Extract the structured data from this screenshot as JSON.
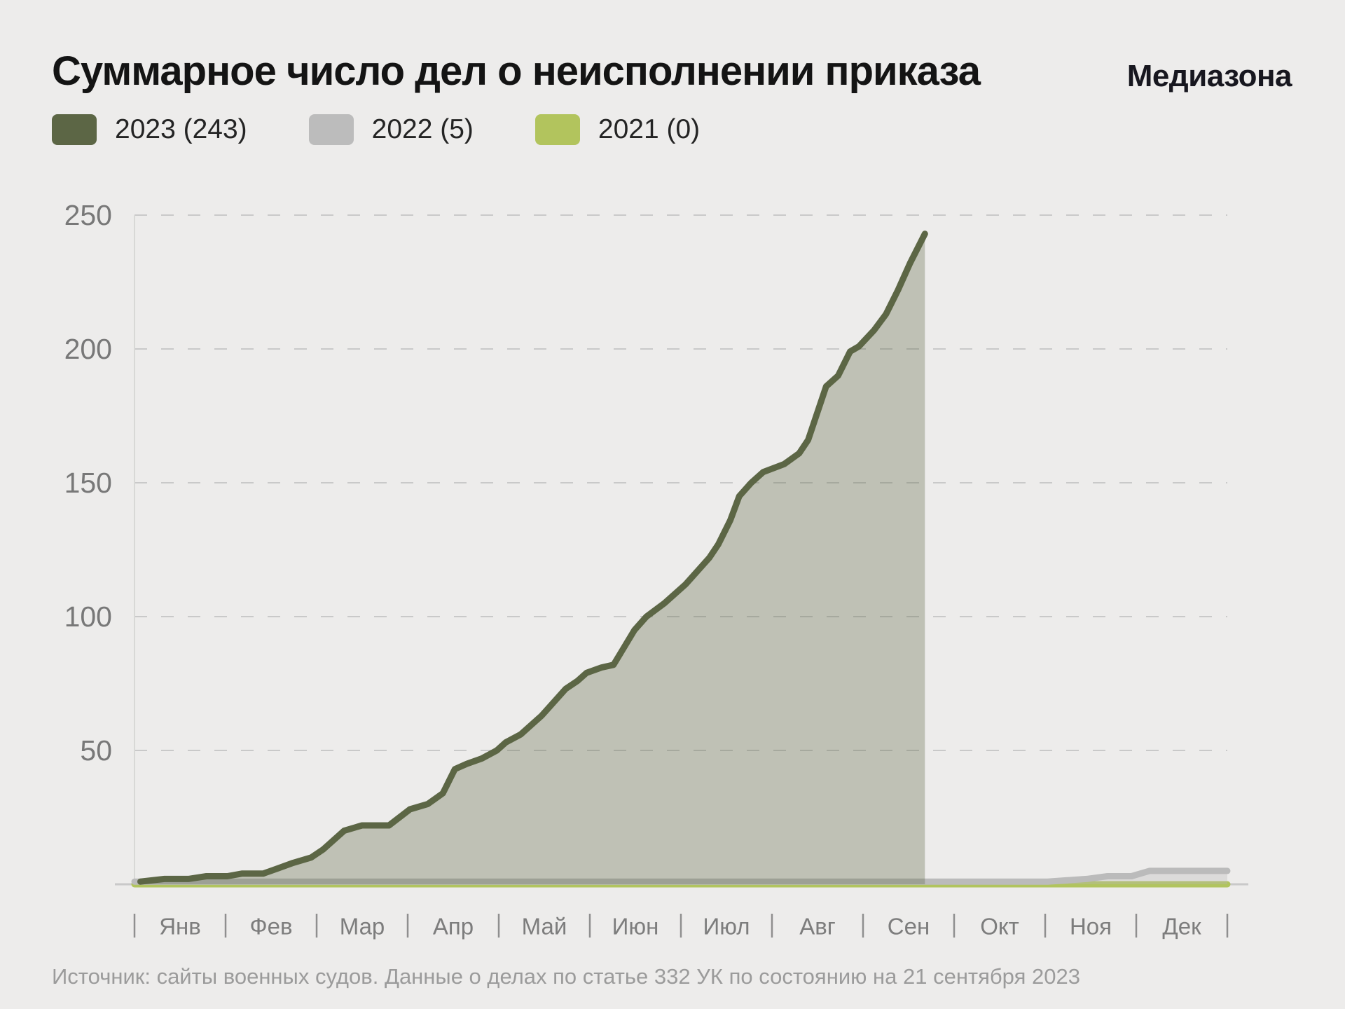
{
  "header": {
    "title": "Суммарное число дел о неисполнении приказа",
    "brand": "Медиазона"
  },
  "legend": [
    {
      "label": "2023 (243)",
      "color": "#5c6645"
    },
    {
      "label": "2022 (5)",
      "color": "#bcbcbc"
    },
    {
      "label": "2021 (0)",
      "color": "#b2c45d"
    }
  ],
  "source": "Источник: сайты военных судов. Данные о делах по статье 332 УК по состоянию на 21 сентября 2023",
  "chart_data": {
    "type": "area",
    "title": "Суммарное число дел о неисполнении приказа",
    "subtitle": "Данные по состоянию на 21 сентября 2023",
    "x_axis": {
      "months": [
        "Янв",
        "Фев",
        "Мар",
        "Апр",
        "Май",
        "Июн",
        "Июл",
        "Авг",
        "Сен",
        "Окт",
        "Ноя",
        "Дек"
      ],
      "unit": "день года, деления — границы месяцев"
    },
    "y_axis": {
      "ticks": [
        50,
        100,
        150,
        200,
        250
      ],
      "range": [
        0,
        250
      ],
      "grid": "dashed"
    },
    "legend_position": "top-left",
    "series": [
      {
        "name": "2023",
        "total": 243,
        "color": "#5c6645",
        "fill": "rgba(92,102,69,0.32)",
        "points": [
          [
            2,
            1
          ],
          [
            10,
            2
          ],
          [
            18,
            2
          ],
          [
            24,
            3
          ],
          [
            31,
            3
          ],
          [
            36,
            4
          ],
          [
            43,
            4
          ],
          [
            48,
            6
          ],
          [
            53,
            8
          ],
          [
            59,
            10
          ],
          [
            63,
            13
          ],
          [
            70,
            20
          ],
          [
            76,
            22
          ],
          [
            85,
            22
          ],
          [
            92,
            28
          ],
          [
            98,
            30
          ],
          [
            103,
            34
          ],
          [
            107,
            43
          ],
          [
            111,
            45
          ],
          [
            116,
            47
          ],
          [
            121,
            50
          ],
          [
            124,
            53
          ],
          [
            129,
            56
          ],
          [
            136,
            63
          ],
          [
            144,
            73
          ],
          [
            148,
            76
          ],
          [
            151,
            79
          ],
          [
            156,
            81
          ],
          [
            160,
            82
          ],
          [
            167,
            95
          ],
          [
            171,
            100
          ],
          [
            177,
            105
          ],
          [
            184,
            112
          ],
          [
            188,
            117
          ],
          [
            192,
            122
          ],
          [
            195,
            127
          ],
          [
            199,
            136
          ],
          [
            202,
            145
          ],
          [
            206,
            150
          ],
          [
            210,
            154
          ],
          [
            217,
            157
          ],
          [
            222,
            161
          ],
          [
            225,
            166
          ],
          [
            231,
            186
          ],
          [
            235,
            190
          ],
          [
            239,
            199
          ],
          [
            242,
            201
          ],
          [
            247,
            207
          ],
          [
            251,
            213
          ],
          [
            255,
            222
          ],
          [
            259,
            232
          ],
          [
            264,
            243
          ]
        ]
      },
      {
        "name": "2022",
        "total": 5,
        "color": "#bbbbbb",
        "fill": "rgba(185,185,185,0.32)",
        "points": [
          [
            0,
            1
          ],
          [
            305,
            1
          ],
          [
            318,
            2
          ],
          [
            325,
            3
          ],
          [
            333,
            3
          ],
          [
            339,
            5
          ],
          [
            365,
            5
          ]
        ]
      },
      {
        "name": "2021",
        "total": 0,
        "color": "#b1c45e",
        "fill": null,
        "points": [
          [
            0,
            0
          ],
          [
            365,
            0
          ]
        ]
      }
    ]
  }
}
